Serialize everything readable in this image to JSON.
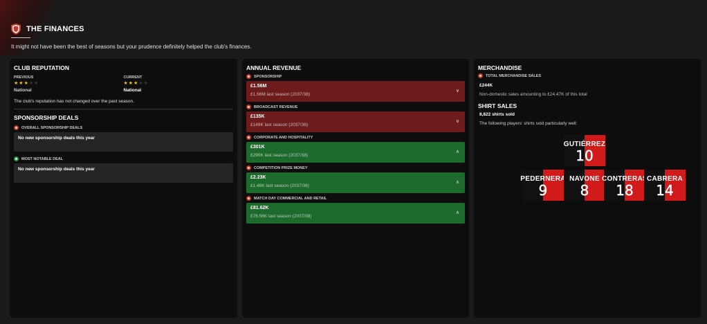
{
  "header": {
    "title": "THE FINANCES",
    "subtitle": "It might not have been the best of seasons but your prudence definitely helped the club's finances."
  },
  "reputation": {
    "title": "CLUB REPUTATION",
    "previous_label": "PREVIOUS",
    "previous_stars": 3,
    "previous_value": "National",
    "current_label": "CURRENT",
    "current_stars": 3,
    "current_value": "National",
    "max_stars": 5,
    "note": "The club's reputation has not changed over the past season."
  },
  "sponsorship": {
    "title": "SPONSORSHIP DEALS",
    "overall_label": "OVERALL SPONSORSHIP DEALS",
    "overall_text": "No new sponsorship deals this year",
    "notable_label": "MOST NOTABLE DEAL",
    "notable_text": "No new sponsorship deals this year"
  },
  "revenue": {
    "title": "ANNUAL REVENUE",
    "items": [
      {
        "label": "SPONSORSHIP",
        "amount": "£1.56M",
        "last": "£1.56M last season (2037/38)",
        "trend": "down",
        "arrow": "∨"
      },
      {
        "label": "BROADCAST REVENUE",
        "amount": "£135K",
        "last": "£149K last season (2037/38)",
        "trend": "down",
        "arrow": "∨"
      },
      {
        "label": "CORPORATE AND HOSPITALITY",
        "amount": "£301K",
        "last": "£290K last season (2037/38)",
        "trend": "up",
        "arrow": "∧"
      },
      {
        "label": "COMPETITION PRIZE MONEY",
        "amount": "£2.23K",
        "last": "£1.48K last season (2037/38)",
        "trend": "up",
        "arrow": "∧"
      },
      {
        "label": "MATCH DAY COMMERCIAL AND RETAIL",
        "amount": "£81.62K",
        "last": "£76.56K last season (2037/38)",
        "trend": "up",
        "arrow": "∧"
      }
    ]
  },
  "merchandise": {
    "title": "MERCHANDISE",
    "total_label": "TOTAL MERCHANDISE SALES",
    "total_value": "£244K",
    "total_note": "Non-domestic sales amounting to £24.47K of this total",
    "shirt_title": "SHIRT SALES",
    "shirts_sold": "8,822 shirts sold",
    "shirts_note": "The following players' shirts sold particularly well:",
    "players": [
      {
        "name": "GUTIÉRREZ",
        "number": "10"
      },
      {
        "name": "PEDERNERA",
        "number": "9"
      },
      {
        "name": "NAVONE",
        "number": "8"
      },
      {
        "name": "CONTRERAS",
        "number": "18"
      },
      {
        "name": "CABRERA",
        "number": "14"
      }
    ]
  },
  "colors": {
    "decline": "#6d1b1b",
    "growth": "#1d6b2c",
    "accent_red": "#c0392b",
    "shirt_red": "#d11a1a",
    "star": "#f1c40f"
  }
}
